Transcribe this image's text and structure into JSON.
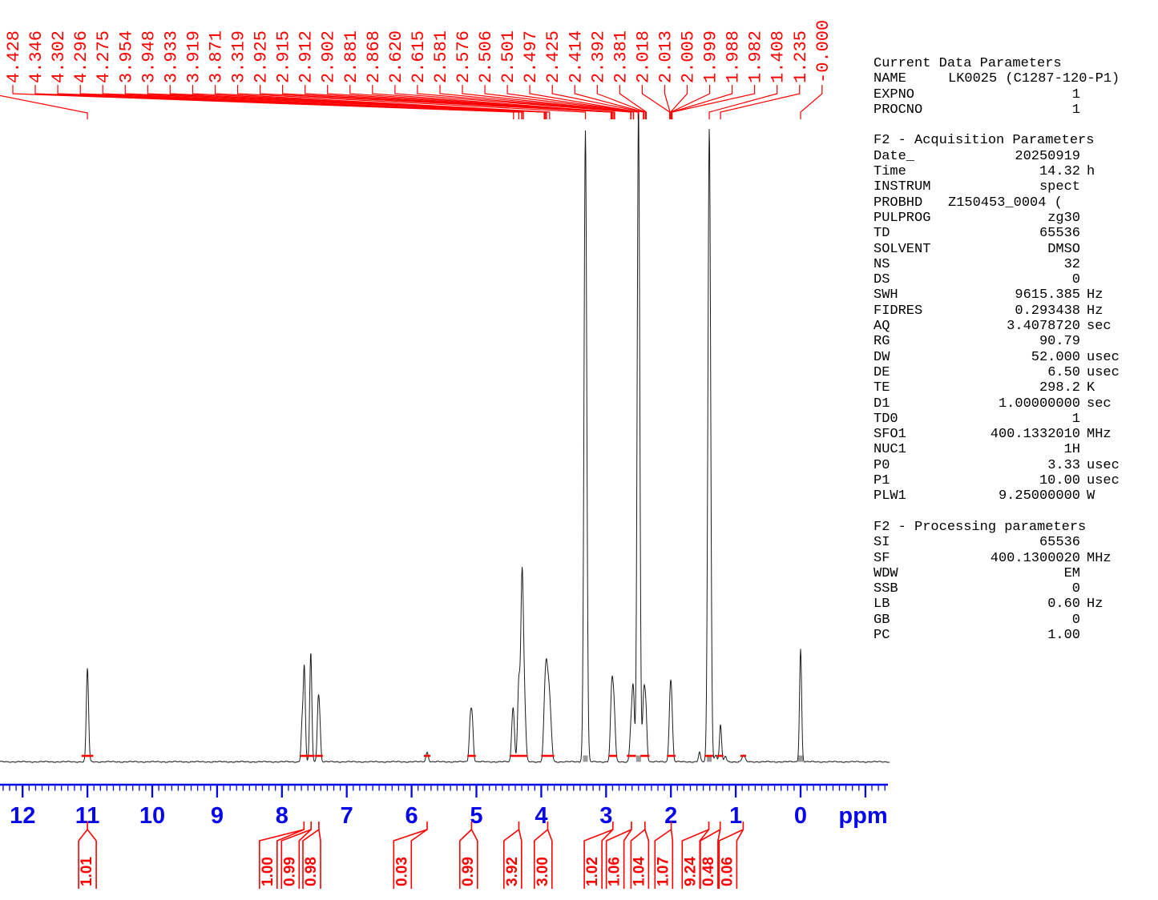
{
  "colors": {
    "peak_label_red": "#ff0000",
    "axis_blue": "#0606ec",
    "trace_black": "#1c1c1c"
  },
  "parameters": {
    "rows": [
      {
        "k": "Current Data Parameters",
        "header": true
      },
      {
        "k": "NAME",
        "v": "LK0025 (C1287-120-P1)",
        "u": "",
        "left": true
      },
      {
        "k": "EXPNO",
        "v": "1",
        "u": ""
      },
      {
        "k": "PROCNO",
        "v": "1",
        "u": ""
      },
      {
        "blank": true
      },
      {
        "k": "F2 - Acquisition Parameters",
        "header": true
      },
      {
        "k": "Date_",
        "v": "20250919",
        "u": ""
      },
      {
        "k": "Time",
        "v": "14.32",
        "u": "h"
      },
      {
        "k": "INSTRUM",
        "v": "spect",
        "u": ""
      },
      {
        "k": "PROBHD",
        "v": "Z150453_0004 (",
        "u": "",
        "left": true
      },
      {
        "k": "PULPROG",
        "v": "zg30",
        "u": ""
      },
      {
        "k": "TD",
        "v": "65536",
        "u": ""
      },
      {
        "k": "SOLVENT",
        "v": "DMSO",
        "u": ""
      },
      {
        "k": "NS",
        "v": "32",
        "u": ""
      },
      {
        "k": "DS",
        "v": "0",
        "u": ""
      },
      {
        "k": "SWH",
        "v": "9615.385",
        "u": "Hz"
      },
      {
        "k": "FIDRES",
        "v": "0.293438",
        "u": "Hz"
      },
      {
        "k": "AQ",
        "v": "3.4078720",
        "u": "sec"
      },
      {
        "k": "RG",
        "v": "90.79",
        "u": ""
      },
      {
        "k": "DW",
        "v": "52.000",
        "u": "usec"
      },
      {
        "k": "DE",
        "v": "6.50",
        "u": "usec"
      },
      {
        "k": "TE",
        "v": "298.2",
        "u": "K"
      },
      {
        "k": "D1",
        "v": "1.00000000",
        "u": "sec"
      },
      {
        "k": "TD0",
        "v": "1",
        "u": ""
      },
      {
        "k": "SFO1",
        "v": "400.1332010",
        "u": "MHz"
      },
      {
        "k": "NUC1",
        "v": "1H",
        "u": ""
      },
      {
        "k": "P0",
        "v": "3.33",
        "u": "usec"
      },
      {
        "k": "P1",
        "v": "10.00",
        "u": "usec"
      },
      {
        "k": "PLW1",
        "v": "9.25000000",
        "u": "W"
      },
      {
        "blank": true
      },
      {
        "k": "F2 - Processing parameters",
        "header": true
      },
      {
        "k": "SI",
        "v": "65536",
        "u": ""
      },
      {
        "k": "SF",
        "v": "400.1300020",
        "u": "MHz"
      },
      {
        "k": "WDW",
        "v": "EM",
        "u": ""
      },
      {
        "k": "SSB",
        "v": "0",
        "u": ""
      },
      {
        "k": "LB",
        "v": "0.60",
        "u": "Hz"
      },
      {
        "k": "GB",
        "v": "0",
        "u": ""
      },
      {
        "k": "PC",
        "v": "1.00",
        "u": ""
      }
    ]
  },
  "chart_data": {
    "type": "line",
    "kind": "1H NMR spectrum",
    "xlabel": "ppm",
    "x_axis": {
      "ticks": [
        12,
        11,
        10,
        9,
        8,
        7,
        6,
        5,
        4,
        3,
        2,
        1,
        0
      ],
      "unit": "ppm",
      "range_ppm": [
        12.35,
        -1.33
      ],
      "direction": "reversed",
      "minor_tick_step": 0.1
    },
    "peak_labels": [
      "4.428",
      "4.346",
      "4.302",
      "4.296",
      "4.275",
      "3.954",
      "3.948",
      "3.933",
      "3.919",
      "3.871",
      "3.319",
      "2.925",
      "2.915",
      "2.912",
      "2.902",
      "2.881",
      "2.868",
      "2.620",
      "2.615",
      "2.581",
      "2.576",
      "2.506",
      "2.501",
      "2.497",
      "2.425",
      "2.414",
      "2.392",
      "2.381",
      "2.018",
      "2.013",
      "2.005",
      "1.999",
      "1.988",
      "1.982",
      "1.408",
      "1.235",
      "-0.000"
    ],
    "offscreen_peak_ppm": 11.0,
    "peaks": [
      {
        "ppm": 11.0,
        "i": 0.148,
        "w": 1.4
      },
      {
        "ppm": 7.69,
        "i": 0.057,
        "w": 1.2
      },
      {
        "ppm": 7.655,
        "i": 0.149,
        "w": 1.3
      },
      {
        "ppm": 7.555,
        "i": 0.173,
        "w": 1.3
      },
      {
        "ppm": 7.44,
        "i": 0.092,
        "w": 1.3
      },
      {
        "ppm": 7.415,
        "i": 0.048,
        "w": 1.2
      },
      {
        "ppm": 5.76,
        "i": 0.015,
        "w": 1.5
      },
      {
        "ppm": 5.095,
        "i": 0.061,
        "w": 1.4
      },
      {
        "ppm": 5.065,
        "i": 0.063,
        "w": 1.4
      },
      {
        "ppm": 4.45,
        "i": 0.035,
        "w": 1.3
      },
      {
        "ppm": 4.428,
        "i": 0.069,
        "w": 1.4
      },
      {
        "ppm": 4.346,
        "i": 0.126,
        "w": 1.5
      },
      {
        "ppm": 4.302,
        "i": 0.136,
        "w": 1.5
      },
      {
        "ppm": 4.296,
        "i": 0.114,
        "w": 1.4
      },
      {
        "ppm": 4.275,
        "i": 0.111,
        "w": 1.5
      },
      {
        "ppm": 4.248,
        "i": 0.048,
        "w": 1.4
      },
      {
        "ppm": 3.954,
        "i": 0.048,
        "w": 1.5
      },
      {
        "ppm": 3.933,
        "i": 0.061,
        "w": 1.5
      },
      {
        "ppm": 3.919,
        "i": 0.068,
        "w": 1.6
      },
      {
        "ppm": 3.895,
        "i": 0.072,
        "w": 1.7
      },
      {
        "ppm": 3.871,
        "i": 0.058,
        "w": 1.6
      },
      {
        "ppm": 3.845,
        "i": 0.028,
        "w": 1.5
      },
      {
        "ppm": 3.319,
        "i": 0.996,
        "w": 1.7
      },
      {
        "ppm": 2.925,
        "i": 0.035,
        "w": 1.4
      },
      {
        "ppm": 2.912,
        "i": 0.051,
        "w": 1.5
      },
      {
        "ppm": 2.902,
        "i": 0.045,
        "w": 1.4
      },
      {
        "ppm": 2.881,
        "i": 0.051,
        "w": 1.5
      },
      {
        "ppm": 2.868,
        "i": 0.03,
        "w": 1.4
      },
      {
        "ppm": 2.62,
        "i": 0.043,
        "w": 1.4
      },
      {
        "ppm": 2.598,
        "i": 0.038,
        "w": 1.3
      },
      {
        "ppm": 2.581,
        "i": 0.053,
        "w": 1.4
      },
      {
        "ppm": 2.576,
        "i": 0.045,
        "w": 1.3
      },
      {
        "ppm": 2.506,
        "i": 0.051,
        "w": 1.3
      },
      {
        "ppm": 2.5,
        "i": 0.983,
        "w": 1.6
      },
      {
        "ppm": 2.425,
        "i": 0.051,
        "w": 1.4
      },
      {
        "ppm": 2.414,
        "i": 0.053,
        "w": 1.4
      },
      {
        "ppm": 2.392,
        "i": 0.048,
        "w": 1.4
      },
      {
        "ppm": 2.381,
        "i": 0.035,
        "w": 1.3
      },
      {
        "ppm": 2.018,
        "i": 0.035,
        "w": 1.4
      },
      {
        "ppm": 2.005,
        "i": 0.044,
        "w": 1.5
      },
      {
        "ppm": 1.999,
        "i": 0.048,
        "w": 1.5
      },
      {
        "ppm": 1.982,
        "i": 0.033,
        "w": 1.4
      },
      {
        "ppm": 1.56,
        "i": 0.015,
        "w": 1.2
      },
      {
        "ppm": 1.408,
        "i": 1.0,
        "w": 1.7
      },
      {
        "ppm": 1.31,
        "i": 0.011,
        "w": 1.5
      },
      {
        "ppm": 1.235,
        "i": 0.059,
        "w": 1.3
      },
      {
        "ppm": 1.16,
        "i": 0.009,
        "w": 1.3
      },
      {
        "ppm": 0.88,
        "i": 0.011,
        "w": 1.8
      },
      {
        "ppm": 0.0,
        "i": 0.178,
        "w": 1.3
      }
    ],
    "tall_peak_base_markers_ppm": [
      3.319,
      2.5,
      1.408,
      0.0
    ],
    "integrals": [
      {
        "value": "1.01",
        "from": 11.09,
        "to": 10.91,
        "label_ppm": 11.0
      },
      {
        "value": "1.00",
        "from": 7.72,
        "to": 7.6,
        "label_ppm": 8.21
      },
      {
        "value": "0.99",
        "from": 7.6,
        "to": 7.5,
        "label_ppm": 7.87
      },
      {
        "value": "0.98",
        "from": 7.49,
        "to": 7.37,
        "label_ppm": 7.54
      },
      {
        "value": "0.03",
        "from": 5.81,
        "to": 5.71,
        "label_ppm": 6.14
      },
      {
        "value": "0.99",
        "from": 5.14,
        "to": 5.01,
        "label_ppm": 5.12
      },
      {
        "value": "3.92",
        "from": 4.48,
        "to": 4.21,
        "label_ppm": 4.44
      },
      {
        "value": "3.00",
        "from": 4.0,
        "to": 3.8,
        "label_ppm": 3.97
      },
      {
        "value": "1.02",
        "from": 2.96,
        "to": 2.83,
        "label_ppm": 3.2
      },
      {
        "value": "1.06",
        "from": 2.68,
        "to": 2.54,
        "label_ppm": 2.86
      },
      {
        "value": "1.04",
        "from": 2.47,
        "to": 2.33,
        "label_ppm": 2.48
      },
      {
        "value": "1.07",
        "from": 2.06,
        "to": 1.93,
        "label_ppm": 2.11
      },
      {
        "value": "9.24",
        "from": 1.48,
        "to": 1.35,
        "label_ppm": 1.69
      },
      {
        "value": "0.48",
        "from": 1.29,
        "to": 1.19,
        "label_ppm": 1.41
      },
      {
        "value": "0.06",
        "from": 0.93,
        "to": 0.84,
        "label_ppm": 1.12
      }
    ]
  }
}
